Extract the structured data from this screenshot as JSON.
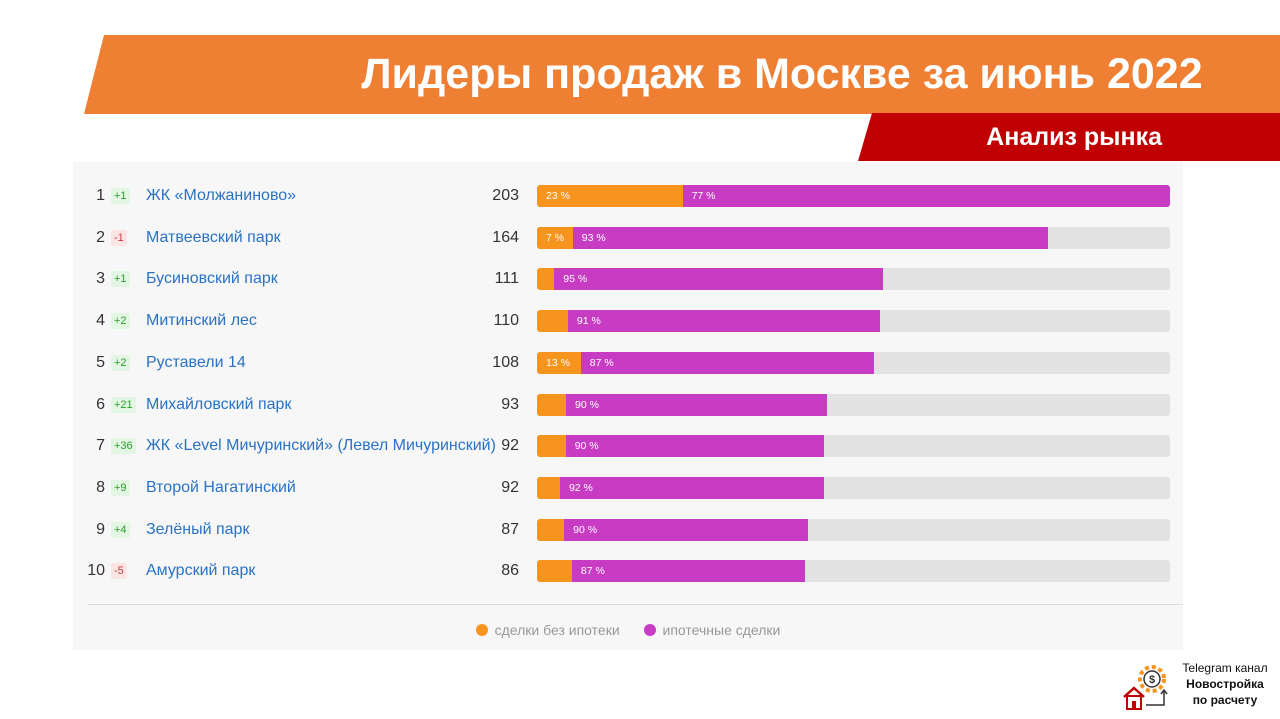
{
  "header": {
    "title": "Лидеры продаж в Москве за июнь 2022",
    "section": "Анализ рынка"
  },
  "colors": {
    "no_mortgage": "#F7941D",
    "mortgage": "#C83CC4",
    "title_band": "#EE7F33",
    "section_band": "#C00000"
  },
  "chart_data": {
    "type": "bar",
    "stacked": true,
    "orientation": "horizontal",
    "max_value": 203,
    "legend_position": "bottom",
    "series_names": [
      "сделки без ипотеки",
      "ипотечные сделки"
    ],
    "rows": [
      {
        "rank": "1",
        "change": "+1",
        "name": "ЖК «Молжаниново»",
        "total": 203,
        "label_a": "23 %",
        "label_b": "77 %",
        "share_a": 0.23
      },
      {
        "rank": "2",
        "change": "-1",
        "name": "Матвеевский парк",
        "total": 164,
        "label_a": "7 %",
        "label_b": "93 %",
        "share_a": 0.07
      },
      {
        "rank": "3",
        "change": "+1",
        "name": "Бусиновский парк",
        "total": 111,
        "label_a": "",
        "label_b": "95 %",
        "share_a": 0.05
      },
      {
        "rank": "4",
        "change": "+2",
        "name": "Митинский лес",
        "total": 110,
        "label_a": "",
        "label_b": "91 %",
        "share_a": 0.09
      },
      {
        "rank": "5",
        "change": "+2",
        "name": "Руставели 14",
        "total": 108,
        "label_a": "13 %",
        "label_b": "87 %",
        "share_a": 0.13
      },
      {
        "rank": "6",
        "change": "+21",
        "name": "Михайловский парк",
        "total": 93,
        "label_a": "",
        "label_b": "90 %",
        "share_a": 0.1
      },
      {
        "rank": "7",
        "change": "+36",
        "name": "ЖК «Level Мичуринский» (Левел Мичуринский)",
        "total": 92,
        "label_a": "",
        "label_b": "90 %",
        "share_a": 0.1
      },
      {
        "rank": "8",
        "change": "+9",
        "name": "Второй Нагатинский",
        "total": 92,
        "label_a": "",
        "label_b": "92 %",
        "share_a": 0.08
      },
      {
        "rank": "9",
        "change": "+4",
        "name": "Зелёный парк",
        "total": 87,
        "label_a": "",
        "label_b": "90 %",
        "share_a": 0.1
      },
      {
        "rank": "10",
        "change": "-5",
        "name": "Амурский парк",
        "total": 86,
        "label_a": "",
        "label_b": "87 %",
        "share_a": 0.13
      }
    ]
  },
  "legend": {
    "no_mortgage": "сделки без ипотеки",
    "mortgage": "ипотечные сделки"
  },
  "brand": {
    "line1": "Telegram канал",
    "line2": "Новостройка",
    "line3": "по расчету",
    "icon": "house-gear-dollar-icon"
  }
}
